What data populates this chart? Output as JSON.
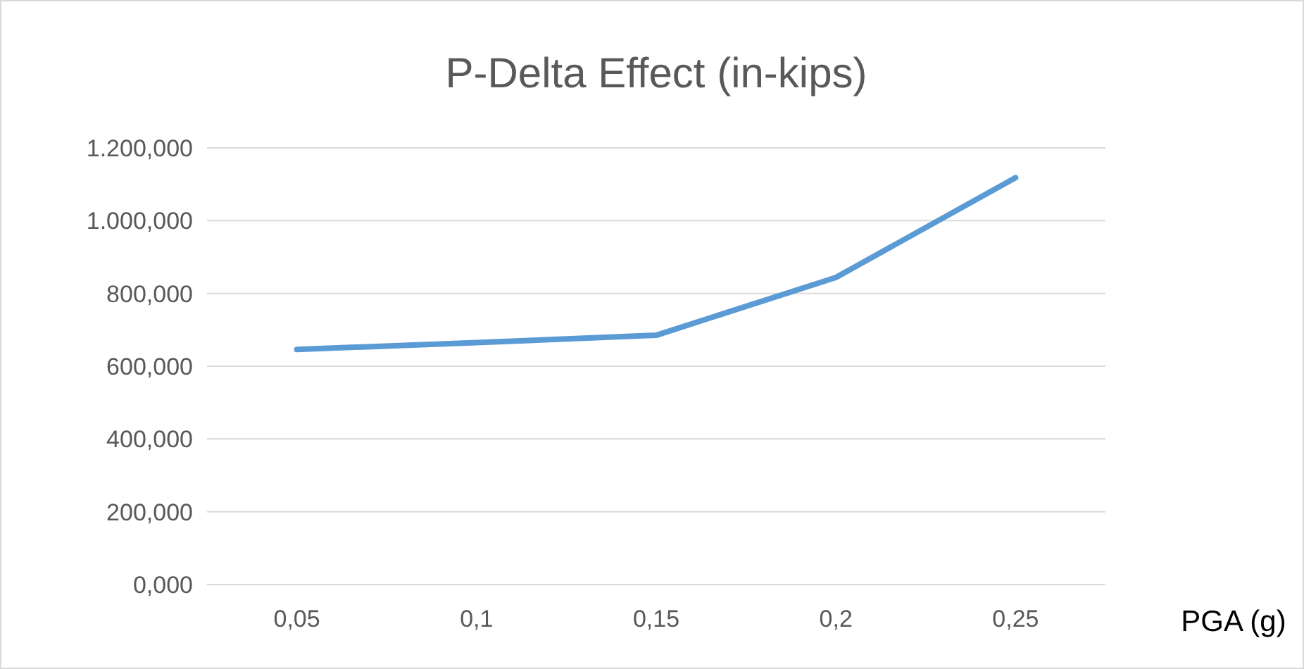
{
  "chart_data": {
    "type": "line",
    "title": "P-Delta Effect (in-kips)",
    "xlabel": "PGA (g)",
    "categories": [
      "0,05",
      "0,1",
      "0,15",
      "0,2",
      "0,25"
    ],
    "series": [
      {
        "color": "#5b9bd5",
        "values": [
          646,
          665,
          685,
          844,
          1118
        ]
      }
    ],
    "ylim": [
      0,
      1200
    ],
    "yticks": [
      {
        "value": 0,
        "label": "0,000"
      },
      {
        "value": 200,
        "label": "200,000"
      },
      {
        "value": 400,
        "label": "400,000"
      },
      {
        "value": 600,
        "label": "600,000"
      },
      {
        "value": 800,
        "label": "800,000"
      },
      {
        "value": 1000,
        "label": "1.000,000"
      },
      {
        "value": 1200,
        "label": "1.200,000"
      }
    ],
    "grid": "y",
    "marker": "none",
    "line_style": "solid"
  }
}
